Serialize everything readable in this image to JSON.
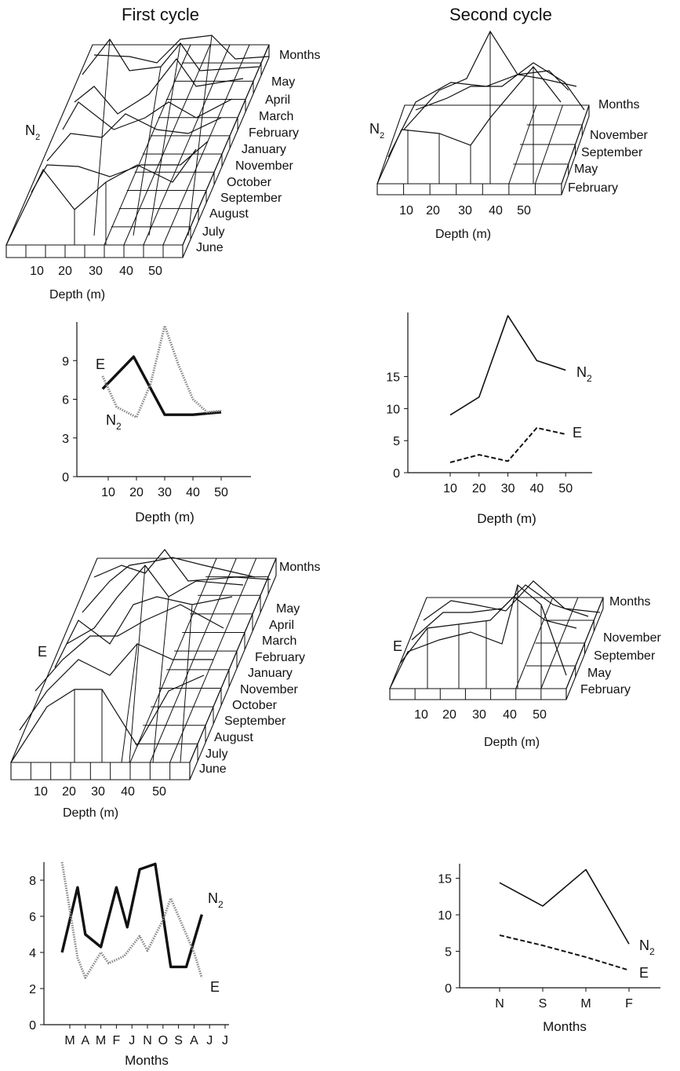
{
  "titles": {
    "first_cycle": "First cycle",
    "second_cycle": "Second cycle"
  },
  "charts": {
    "c1": {
      "subscript": "2",
      "rows": [
        "May",
        "April",
        "March",
        "February",
        "January",
        "November",
        "October",
        "September",
        "August",
        "July",
        "June"
      ],
      "cols": [
        "10",
        "20",
        "30",
        "40",
        "50"
      ]
    },
    "c2": {
      "subscript": "2",
      "rows": [
        "November",
        "September",
        "May",
        "February"
      ],
      "cols": [
        "10",
        "20",
        "30",
        "40",
        "50"
      ]
    },
    "c5": {
      "rows": [
        "May",
        "April",
        "March",
        "February",
        "January",
        "November",
        "October",
        "September",
        "August",
        "July",
        "June"
      ]
    },
    "c6": {
      "rows": [
        "November",
        "September",
        "May",
        "February"
      ]
    }
  },
  "chart_data": [
    {
      "id": "c1",
      "type": "surface3d",
      "zlabel": "N2",
      "xlabel": "Depth (m)",
      "ylabel": "Months",
      "x": [
        10,
        20,
        30,
        40,
        50
      ],
      "y": [
        "June",
        "July",
        "August",
        "September",
        "October",
        "November",
        "January",
        "February",
        "March",
        "April",
        "May"
      ]
    },
    {
      "id": "c2",
      "type": "surface3d",
      "zlabel": "N2",
      "xlabel": "Depth (m)",
      "ylabel": "Months",
      "x": [
        10,
        20,
        30,
        40,
        50
      ],
      "y": [
        "February",
        "May",
        "September",
        "November"
      ]
    },
    {
      "id": "c3",
      "type": "line",
      "xlabel": "Depth (m)",
      "ylabel": "",
      "x": [
        10,
        20,
        30,
        40,
        50
      ],
      "xticks": [
        "10",
        "20",
        "30",
        "40",
        "50"
      ],
      "yticks": [
        "0",
        "3",
        "6",
        "9"
      ],
      "ylim": [
        0,
        12
      ],
      "series": [
        {
          "name": "N2",
          "style": "solid-bold",
          "color": "#111111",
          "points": [
            [
              8,
              6.8
            ],
            [
              19,
              9.3
            ],
            [
              30,
              4.8
            ],
            [
              40,
              4.8
            ],
            [
              50,
              5
            ]
          ]
        },
        {
          "name": "E",
          "style": "dotted",
          "color": "#888888",
          "points": [
            [
              8,
              7.8
            ],
            [
              13,
              5.4
            ],
            [
              20,
              4.6
            ],
            [
              25,
              7.2
            ],
            [
              30,
              11.7
            ],
            [
              35,
              8.6
            ],
            [
              40,
              6
            ],
            [
              45,
              5
            ],
            [
              50,
              5.1
            ]
          ]
        }
      ]
    },
    {
      "id": "c4",
      "type": "line",
      "xlabel": "Depth (m)",
      "ylabel": "",
      "x": [
        10,
        20,
        30,
        40,
        50
      ],
      "xticks": [
        "10",
        "20",
        "30",
        "40",
        "50"
      ],
      "yticks": [
        "0",
        "5",
        "10",
        "15"
      ],
      "ylim": [
        0,
        25
      ],
      "series": [
        {
          "name": "N2",
          "style": "solid",
          "color": "#111111",
          "points": [
            [
              10,
              9
            ],
            [
              20,
              11.8
            ],
            [
              30,
              24.5
            ],
            [
              40,
              17.5
            ],
            [
              50,
              16
            ]
          ]
        },
        {
          "name": "E",
          "style": "dashed",
          "color": "#111111",
          "points": [
            [
              10,
              1.6
            ],
            [
              20,
              2.8
            ],
            [
              30,
              1.8
            ],
            [
              40,
              7
            ],
            [
              50,
              6
            ]
          ]
        }
      ]
    },
    {
      "id": "c5",
      "type": "surface3d",
      "zlabel": "E",
      "xlabel": "Depth (m)",
      "ylabel": "Months",
      "x": [
        10,
        20,
        30,
        40,
        50
      ],
      "y": [
        "June",
        "July",
        "August",
        "September",
        "October",
        "November",
        "January",
        "February",
        "March",
        "April",
        "May"
      ]
    },
    {
      "id": "c6",
      "type": "surface3d",
      "zlabel": "E",
      "xlabel": "Depth (m)",
      "ylabel": "Months",
      "x": [
        10,
        20,
        30,
        40,
        50
      ],
      "y": [
        "February",
        "May",
        "September",
        "November"
      ]
    },
    {
      "id": "c7",
      "type": "line",
      "xlabel": "Months",
      "ylabel": "",
      "categories": [
        "M",
        "A",
        "M",
        "F",
        "J",
        "N",
        "O",
        "S",
        "A",
        "J",
        "J"
      ],
      "yticks": [
        "0",
        "2",
        "4",
        "6",
        "8"
      ],
      "ylim": [
        0,
        9
      ],
      "series": [
        {
          "name": "N2",
          "style": "solid-bold",
          "color": "#111111",
          "points": [
            [
              -0.5,
              4
            ],
            [
              0.5,
              7.6
            ],
            [
              1,
              5
            ],
            [
              2,
              4.3
            ],
            [
              3,
              7.6
            ],
            [
              3.7,
              5.4
            ],
            [
              4.5,
              8.6
            ],
            [
              5.5,
              8.9
            ],
            [
              6.5,
              3.2
            ],
            [
              7.5,
              3.2
            ],
            [
              8.5,
              6.1
            ]
          ]
        },
        {
          "name": "E",
          "style": "dotted",
          "color": "#888888",
          "points": [
            [
              -0.5,
              9
            ],
            [
              0.5,
              3.7
            ],
            [
              1,
              2.6
            ],
            [
              2,
              4
            ],
            [
              2.5,
              3.4
            ],
            [
              3.5,
              3.8
            ],
            [
              4.5,
              4.9
            ],
            [
              5,
              4.1
            ],
            [
              6,
              5.8
            ],
            [
              6.5,
              7
            ],
            [
              7.5,
              5
            ],
            [
              8,
              4
            ],
            [
              8.5,
              2.6
            ]
          ]
        }
      ]
    },
    {
      "id": "c8",
      "type": "line",
      "xlabel": "Months",
      "ylabel": "",
      "categories": [
        "N",
        "S",
        "M",
        "F"
      ],
      "yticks": [
        "0",
        "5",
        "10",
        "15"
      ],
      "ylim": [
        0,
        17
      ],
      "series": [
        {
          "name": "N2",
          "style": "solid",
          "color": "#111111",
          "points": [
            [
              0,
              14.4
            ],
            [
              1,
              11.2
            ],
            [
              2,
              16.2
            ],
            [
              3,
              6
            ]
          ]
        },
        {
          "name": "E",
          "style": "dashed",
          "color": "#111111",
          "points": [
            [
              0,
              7.2
            ],
            [
              1,
              5.8
            ],
            [
              2,
              4.2
            ],
            [
              3,
              2.4
            ]
          ]
        }
      ]
    }
  ]
}
